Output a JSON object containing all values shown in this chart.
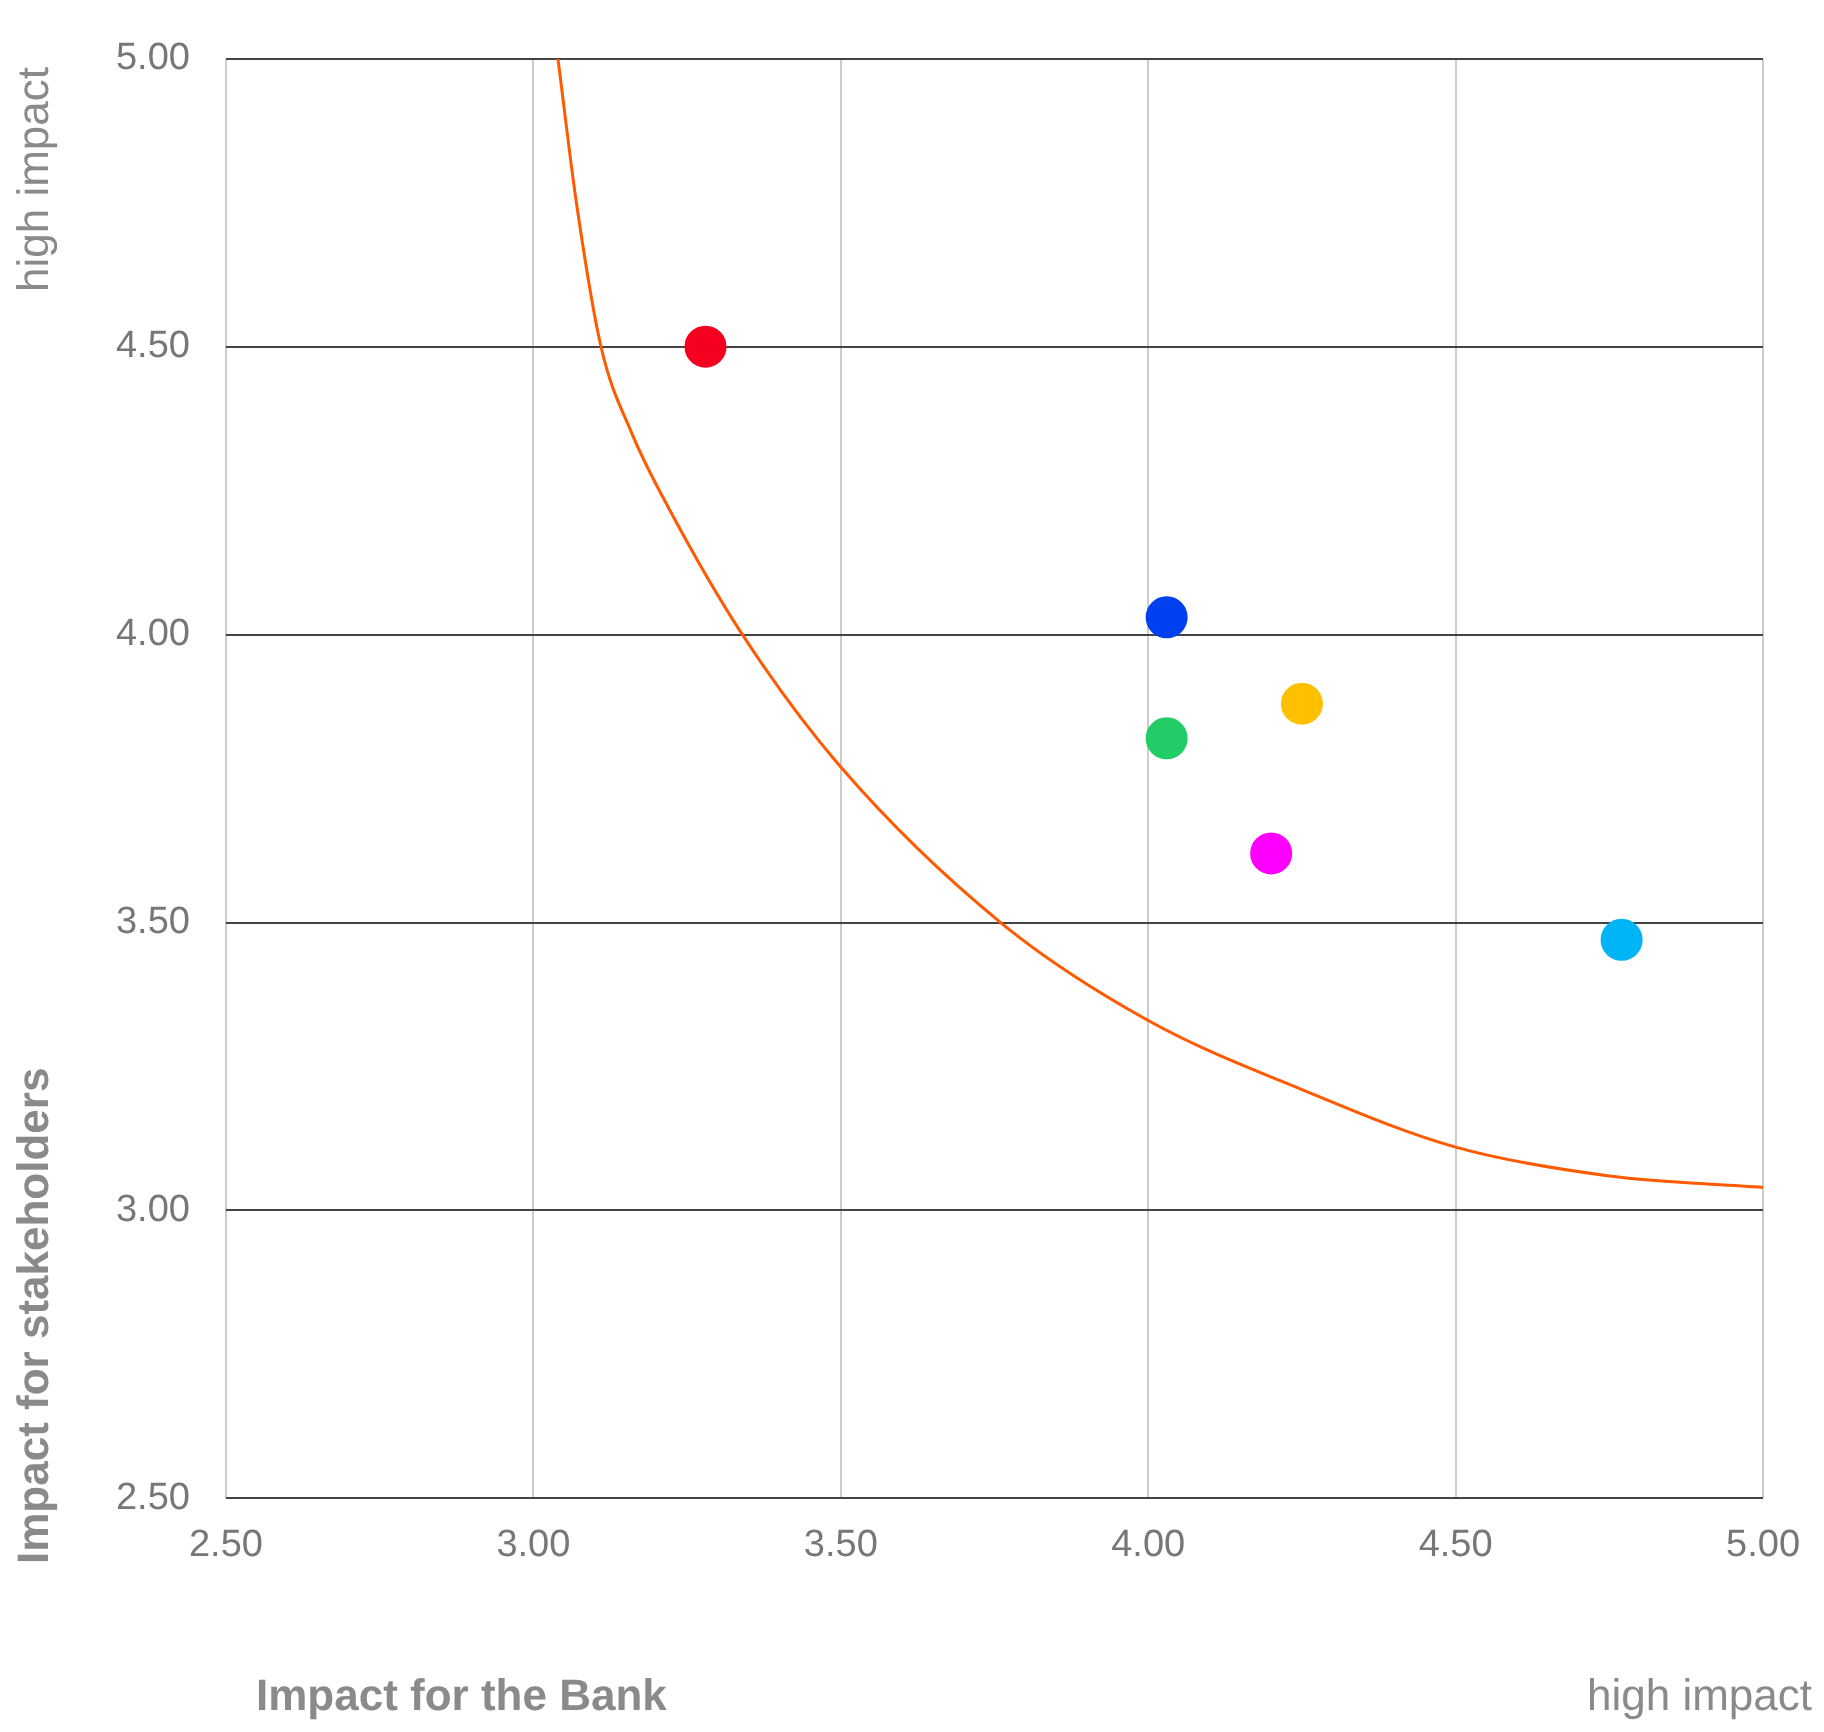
{
  "chart_data": {
    "type": "scatter",
    "xlabel": "Impact for the Bank",
    "ylabel": "Impact for stakeholders",
    "annotations": [
      "high impact",
      "high impact"
    ],
    "series": [
      {
        "x": [
          3.28,
          4.03,
          4.03,
          4.25,
          4.2,
          4.77
        ],
        "values": [
          4.5,
          4.03,
          3.82,
          3.88,
          3.62,
          3.47
        ],
        "colors": [
          "#f5001e",
          "#0040f0",
          "#22cc66",
          "#ffc000",
          "#ff00ff",
          "#00b4f5"
        ],
        "marker": "circle"
      },
      {
        "type": "line",
        "color": "#ff5a00",
        "x": [
          3.04,
          3.07,
          3.11,
          3.16,
          3.22,
          3.34,
          3.5,
          3.76,
          4.0,
          4.25,
          4.5,
          4.75,
          5.0
        ],
        "values": [
          5.0,
          4.75,
          4.5,
          4.35,
          4.22,
          4.0,
          3.77,
          3.5,
          3.33,
          3.21,
          3.11,
          3.06,
          3.04
        ],
        "marker": "none"
      }
    ],
    "xlim": [
      2.5,
      5.0
    ],
    "ylim": [
      2.5,
      5.0
    ],
    "xticks": [
      {
        "value": 2.5,
        "label": "2.50"
      },
      {
        "value": 3.0,
        "label": "3.00"
      },
      {
        "value": 3.5,
        "label": "3.50"
      },
      {
        "value": 4.0,
        "label": "4.00"
      },
      {
        "value": 4.5,
        "label": "4.50"
      },
      {
        "value": 5.0,
        "label": "5.00"
      }
    ],
    "yticks": [
      {
        "value": 2.5,
        "label": "2.50"
      },
      {
        "value": 3.0,
        "label": "3.00"
      },
      {
        "value": 3.5,
        "label": "3.50"
      },
      {
        "value": 4.0,
        "label": "4.00"
      },
      {
        "value": 4.5,
        "label": "4.50"
      },
      {
        "value": 5.0,
        "label": "5.00"
      }
    ],
    "grid": true,
    "legend": false
  }
}
